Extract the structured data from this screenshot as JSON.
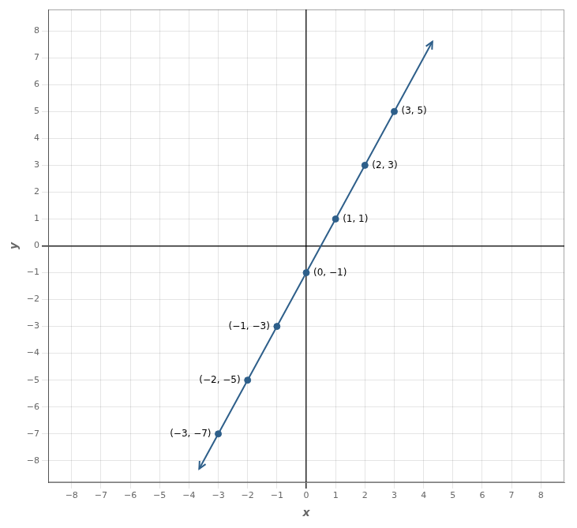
{
  "chart_data": {
    "type": "scatter",
    "xlabel": "x",
    "ylabel": "y",
    "series": [
      {
        "type": "line",
        "color": "#2E5F8A",
        "x": [
          -3.65,
          4.3
        ],
        "values": [
          -8.3,
          7.6
        ]
      },
      {
        "type": "scatter",
        "color": "#2E5F8A",
        "x": [
          -3,
          -2,
          -1,
          0,
          1,
          2,
          3
        ],
        "values": [
          -7,
          -5,
          -3,
          -1,
          1,
          3,
          5
        ],
        "value_labels": [
          "(−3, −7)",
          "(−2, −5)",
          "(−1, −3)",
          "(0, −1)",
          "(1, 1)",
          "(2, 3)",
          "(3, 5)"
        ]
      }
    ],
    "data_labels": true,
    "xlim": [
      -8.8,
      8.8
    ],
    "ylim": [
      -8.8,
      8.8
    ],
    "xticks": [
      {
        "value": -8,
        "label": "−8"
      },
      {
        "value": -7,
        "label": "−7"
      },
      {
        "value": -6,
        "label": "−6"
      },
      {
        "value": -5,
        "label": "−5"
      },
      {
        "value": -4,
        "label": "−4"
      },
      {
        "value": -3,
        "label": "−3"
      },
      {
        "value": -2,
        "label": "−2"
      },
      {
        "value": -1,
        "label": "−1"
      },
      0,
      1,
      2,
      3,
      4,
      5,
      6,
      7,
      8
    ],
    "yticks": [
      {
        "value": -8,
        "label": "−8"
      },
      {
        "value": -7,
        "label": "−7"
      },
      {
        "value": -6,
        "label": "−6"
      },
      {
        "value": -5,
        "label": "−5"
      },
      {
        "value": -4,
        "label": "−4"
      },
      {
        "value": -3,
        "label": "−3"
      },
      {
        "value": -2,
        "label": "−2"
      },
      {
        "value": -1,
        "label": "−1"
      },
      0,
      1,
      2,
      3,
      4,
      5,
      6,
      7,
      8
    ],
    "grid": true
  }
}
